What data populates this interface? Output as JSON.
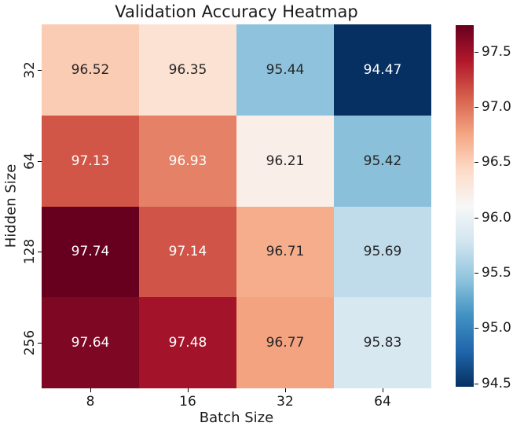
{
  "chart_data": {
    "type": "heatmap",
    "title": "Validation Accuracy Heatmap",
    "xlabel": "Batch Size",
    "ylabel": "Hidden Size",
    "x_categories": [
      "8",
      "16",
      "32",
      "64"
    ],
    "y_categories": [
      "32",
      "64",
      "128",
      "256"
    ],
    "values": [
      [
        96.52,
        96.35,
        95.44,
        94.47
      ],
      [
        97.13,
        96.93,
        96.21,
        95.42
      ],
      [
        97.74,
        97.14,
        96.71,
        95.69
      ],
      [
        97.64,
        97.48,
        96.77,
        95.83
      ]
    ],
    "annot_decimals": 2,
    "vmin": 94.47,
    "vmax": 97.74,
    "colormap_name": "RdBu_r",
    "colormap_stops_low_to_high": [
      "#053061",
      "#2166ac",
      "#4393c3",
      "#92c5de",
      "#d1e5f0",
      "#f7f7f7",
      "#fddbc7",
      "#f4a582",
      "#d6604d",
      "#b2182b",
      "#67001f"
    ],
    "colorbar_ticks": [
      {
        "label": "94.5",
        "value": 94.5
      },
      {
        "label": "95.0",
        "value": 95.0
      },
      {
        "label": "95.5",
        "value": 95.5
      },
      {
        "label": "96.0",
        "value": 96.0
      },
      {
        "label": "96.5",
        "value": 96.5
      },
      {
        "label": "97.0",
        "value": 97.0
      },
      {
        "label": "97.5",
        "value": 97.5
      }
    ],
    "annotation_colors": {
      "on_dark": "#ffffff",
      "on_light": "#262626"
    },
    "axis_text_color": "#1a1a1a",
    "grid": false,
    "legend": "none"
  }
}
